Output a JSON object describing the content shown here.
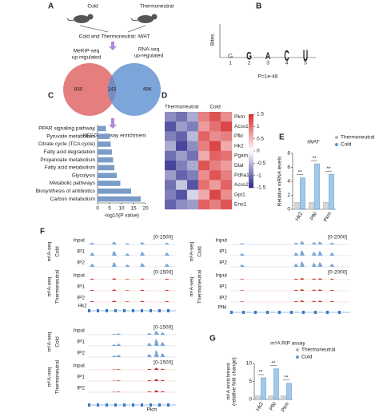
{
  "panel_a": {
    "label": "A",
    "groups": [
      "Cold",
      "Thermoneutral"
    ],
    "condition": "Cold and Thermoneutral: iWAT",
    "sets": [
      [
        "MeRIP-seq",
        "up-regulated"
      ],
      [
        "RNA-seq",
        "up-regulated"
      ]
    ],
    "venn": [
      830,
      143,
      496
    ],
    "next_step": "KEGG pathway enrichment"
  },
  "panel_b": {
    "label": "B",
    "ylabel": "Bites",
    "letters": [
      "G",
      "G",
      "A",
      "C",
      "U"
    ],
    "positions": [
      1,
      2,
      3,
      4,
      5
    ],
    "pvalue": "P=1e-48"
  },
  "panel_f": {
    "label": "F",
    "assay": "m⁶A-seq",
    "group_cold": "Cold",
    "group_thermo": "Thermoneutral",
    "tracks": [
      "Input",
      "IP1",
      "IP2"
    ],
    "blocks": [
      {
        "gene": "Hk2",
        "cold_range": "[0-1500]",
        "thermo_range": "[0-1500]"
      },
      {
        "gene": "Pfkl",
        "cold_range": "[0-2000]",
        "thermo_range": "[0-2000]"
      },
      {
        "gene": "Pkm",
        "cold_range": "[0-1500]",
        "thermo_range": "[0-1500]"
      }
    ]
  },
  "chart_data": [
    {
      "type": "hbar",
      "label": "C",
      "categories": [
        "PPAR signaling pathway",
        "Pyruvate metabolism",
        "Citrate cycle (TCA cycle)",
        "Fatty acid degradation",
        "Propanoate metabolism",
        "Fatty acid metabolism",
        "Glycolysis",
        "Metabolic pathways",
        "Biosynthesis of antibiotics",
        "Carbon metabolism"
      ],
      "values": [
        3.5,
        5,
        5.5,
        6,
        6.5,
        7,
        8,
        9.5,
        14,
        18
      ],
      "color": "#7b9cc8",
      "xlabel": "-log10(P value)",
      "xlim": [
        0,
        20
      ],
      "xticks": [
        0,
        5,
        10,
        15,
        20
      ]
    },
    {
      "type": "heatmap",
      "label": "D",
      "col_groups": [
        "Thermoneutral",
        "Cold"
      ],
      "row_labels": [
        "Pkm",
        "Acss1",
        "Pfkl",
        "Hk2",
        "Pgam1",
        "Dlat",
        "Pdha1",
        "Acss2",
        "Gpi1",
        "Eno1"
      ],
      "values": [
        [
          -0.8,
          -1.0,
          -0.6,
          0.9,
          1.2,
          0.8
        ],
        [
          -1.2,
          -0.7,
          -0.9,
          0.7,
          1.0,
          1.3
        ],
        [
          -0.9,
          -1.1,
          -0.5,
          1.1,
          0.8,
          0.9
        ],
        [
          -0.6,
          -1.3,
          -0.8,
          0.9,
          1.3,
          0.6
        ],
        [
          -1.0,
          -0.7,
          -1.0,
          0.6,
          1.1,
          1.0
        ],
        [
          -1.3,
          -0.9,
          -0.6,
          1.2,
          0.9,
          0.7
        ],
        [
          -0.7,
          -1.1,
          -0.9,
          0.8,
          1.2,
          0.9
        ],
        [
          -1.0,
          -0.4,
          -1.2,
          1.0,
          0.7,
          1.1
        ],
        [
          -0.9,
          -1.2,
          -0.3,
          0.6,
          1.3,
          0.8
        ],
        [
          -1.1,
          -0.8,
          -0.7,
          1.1,
          0.9,
          1.2
        ]
      ],
      "clim": [
        -1.5,
        1.5
      ],
      "cticks": [
        1.5,
        1,
        0.5,
        0,
        -0.5,
        -1,
        -1.5
      ],
      "colors": [
        "#2c2a8c",
        "#ffffff",
        "#d62a2c"
      ]
    },
    {
      "type": "groupbar",
      "label": "E",
      "title": "iWAT",
      "ylabel": "Relative mRNA levels",
      "categories": [
        "Hk2",
        "Pfkl",
        "Pkm"
      ],
      "series": [
        {
          "name": "Thermoneutral",
          "color": "#b4b4b4",
          "values": [
            1,
            1,
            1
          ]
        },
        {
          "name": "Cold",
          "color": "#5b9bd5",
          "values": [
            4.5,
            6.5,
            5
          ]
        }
      ],
      "annotations": [
        "**",
        "**",
        "**"
      ],
      "ylim": [
        0,
        8
      ],
      "yticks": [
        0,
        2,
        4,
        6,
        8
      ]
    },
    {
      "type": "groupbar",
      "label": "G",
      "title": "m⁶A RIP assay",
      "ylabel": [
        "m⁶A enrichment",
        "(relative fold change)"
      ],
      "categories": [
        "Hk2",
        "Pfkl",
        "Pkm"
      ],
      "series": [
        {
          "name": "Thermoneutral",
          "color": "#b4b4b4",
          "values": [
            1,
            1,
            1
          ]
        },
        {
          "name": "Cold",
          "color": "#5b9bd5",
          "values": [
            6,
            8.5,
            4.5
          ]
        }
      ],
      "annotations": [
        "**",
        "**",
        "**"
      ],
      "ylim": [
        0,
        10
      ],
      "yticks": [
        0,
        5,
        10
      ]
    }
  ]
}
